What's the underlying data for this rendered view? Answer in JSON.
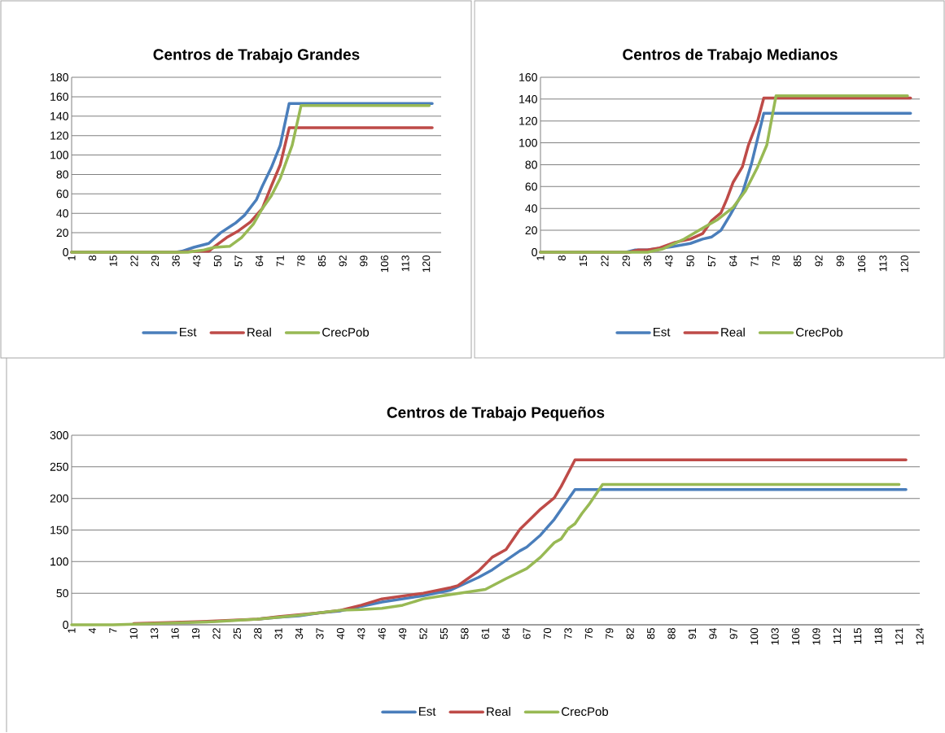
{
  "chart_data": [
    {
      "type": "line",
      "title": "Centros de Trabajo Grandes",
      "xlim": [
        1,
        125
      ],
      "xticks": [
        1,
        8,
        15,
        22,
        29,
        36,
        43,
        50,
        57,
        64,
        71,
        78,
        85,
        92,
        99,
        106,
        113,
        120
      ],
      "ylim": [
        0,
        180
      ],
      "yticks": [
        0,
        20,
        40,
        60,
        80,
        100,
        120,
        140,
        160,
        180
      ],
      "grid": "y",
      "legend": "bottom",
      "series": [
        {
          "name": "Est",
          "color": "#4a7ebb",
          "x": [
            1,
            36,
            38,
            42,
            47,
            51,
            55,
            56,
            59,
            63,
            65,
            68,
            71,
            74,
            122
          ],
          "values": [
            0,
            0,
            1,
            5,
            9,
            20,
            28,
            30,
            38,
            54,
            68,
            87,
            110,
            153,
            153
          ]
        },
        {
          "name": "Real",
          "color": "#be4b48",
          "x": [
            1,
            36,
            44,
            47,
            49,
            53,
            57,
            61,
            65,
            68,
            71,
            74,
            122
          ],
          "values": [
            0,
            0,
            1,
            1,
            6,
            15,
            22,
            31,
            45,
            68,
            90,
            128,
            128
          ]
        },
        {
          "name": "CrecPob",
          "color": "#98b954",
          "x": [
            1,
            40,
            45,
            49,
            54,
            58,
            62,
            65,
            68,
            71,
            75,
            78,
            121
          ],
          "values": [
            0,
            0,
            2,
            5,
            6,
            15,
            29,
            45,
            58,
            76,
            110,
            151,
            151
          ]
        }
      ]
    },
    {
      "type": "line",
      "title": "Centros de Trabajo Medianos",
      "xlim": [
        1,
        125
      ],
      "xticks": [
        1,
        8,
        15,
        22,
        29,
        36,
        43,
        50,
        57,
        64,
        71,
        78,
        85,
        92,
        99,
        106,
        113,
        120
      ],
      "ylim": [
        0,
        160
      ],
      "yticks": [
        0,
        20,
        40,
        60,
        80,
        100,
        120,
        140,
        160
      ],
      "grid": "y",
      "legend": "bottom",
      "series": [
        {
          "name": "Est",
          "color": "#4a7ebb",
          "x": [
            1,
            29,
            32,
            36,
            44,
            50,
            54,
            57,
            60,
            63,
            67,
            70,
            74,
            122
          ],
          "values": [
            0,
            0,
            2,
            2,
            5,
            8,
            12,
            14,
            20,
            34,
            54,
            81,
            127,
            127
          ]
        },
        {
          "name": "Real",
          "color": "#be4b48",
          "x": [
            1,
            30,
            33,
            36,
            40,
            45,
            50,
            54,
            57,
            60,
            62,
            64,
            67,
            69,
            72,
            74,
            122
          ],
          "values": [
            0,
            0,
            2,
            2,
            4,
            9,
            12,
            17,
            29,
            36,
            49,
            64,
            78,
            98,
            120,
            141,
            141
          ]
        },
        {
          "name": "CrecPob",
          "color": "#98b954",
          "x": [
            1,
            36,
            41,
            48,
            54,
            59,
            64,
            68,
            72,
            75,
            78,
            121
          ],
          "values": [
            0,
            0,
            3,
            12,
            22,
            30,
            41,
            56,
            78,
            98,
            143,
            143
          ]
        }
      ]
    },
    {
      "type": "line",
      "title": "Centros de Trabajo Pequeños",
      "xlim": [
        1,
        124
      ],
      "xticks": [
        1,
        4,
        7,
        10,
        13,
        16,
        19,
        22,
        25,
        28,
        31,
        34,
        37,
        40,
        43,
        46,
        49,
        52,
        55,
        58,
        61,
        64,
        67,
        70,
        73,
        76,
        79,
        82,
        85,
        88,
        91,
        94,
        97,
        100,
        103,
        106,
        109,
        112,
        115,
        118,
        121,
        124
      ],
      "ylim": [
        0,
        300
      ],
      "yticks": [
        0,
        50,
        100,
        150,
        200,
        250,
        300
      ],
      "grid": "y",
      "legend": "bottom",
      "series": [
        {
          "name": "Est",
          "color": "#4a7ebb",
          "x": [
            28,
            31,
            34,
            37,
            40,
            46,
            52,
            56,
            60,
            62,
            66,
            67,
            69,
            71,
            74,
            122
          ],
          "values": [
            9,
            12,
            14,
            19,
            22,
            36,
            46,
            55,
            75,
            87,
            117,
            123,
            142,
            167,
            214,
            214
          ]
        },
        {
          "name": "Real",
          "color": "#be4b48",
          "x": [
            10,
            16,
            22,
            28,
            31,
            34,
            37,
            40,
            43,
            46,
            52,
            56,
            57,
            60,
            62,
            64,
            66,
            69,
            71,
            72,
            74,
            122
          ],
          "values": [
            2,
            4,
            6,
            9,
            13,
            16,
            19,
            23,
            31,
            41,
            50,
            59,
            62,
            85,
            107,
            119,
            151,
            183,
            201,
            219,
            261,
            261
          ]
        },
        {
          "name": "CrecPob",
          "color": "#98b954",
          "x": [
            1,
            7,
            10,
            16,
            22,
            28,
            31,
            34,
            37,
            40,
            43,
            46,
            49,
            52,
            56,
            61,
            64,
            67,
            69,
            71,
            72,
            73,
            74,
            75,
            76,
            78,
            121
          ],
          "values": [
            0,
            0,
            1,
            3,
            5,
            9,
            12,
            15,
            19,
            23,
            24,
            26,
            31,
            41,
            48,
            56,
            73,
            89,
            107,
            130,
            136,
            152,
            160,
            176,
            190,
            222,
            222
          ]
        }
      ]
    }
  ]
}
